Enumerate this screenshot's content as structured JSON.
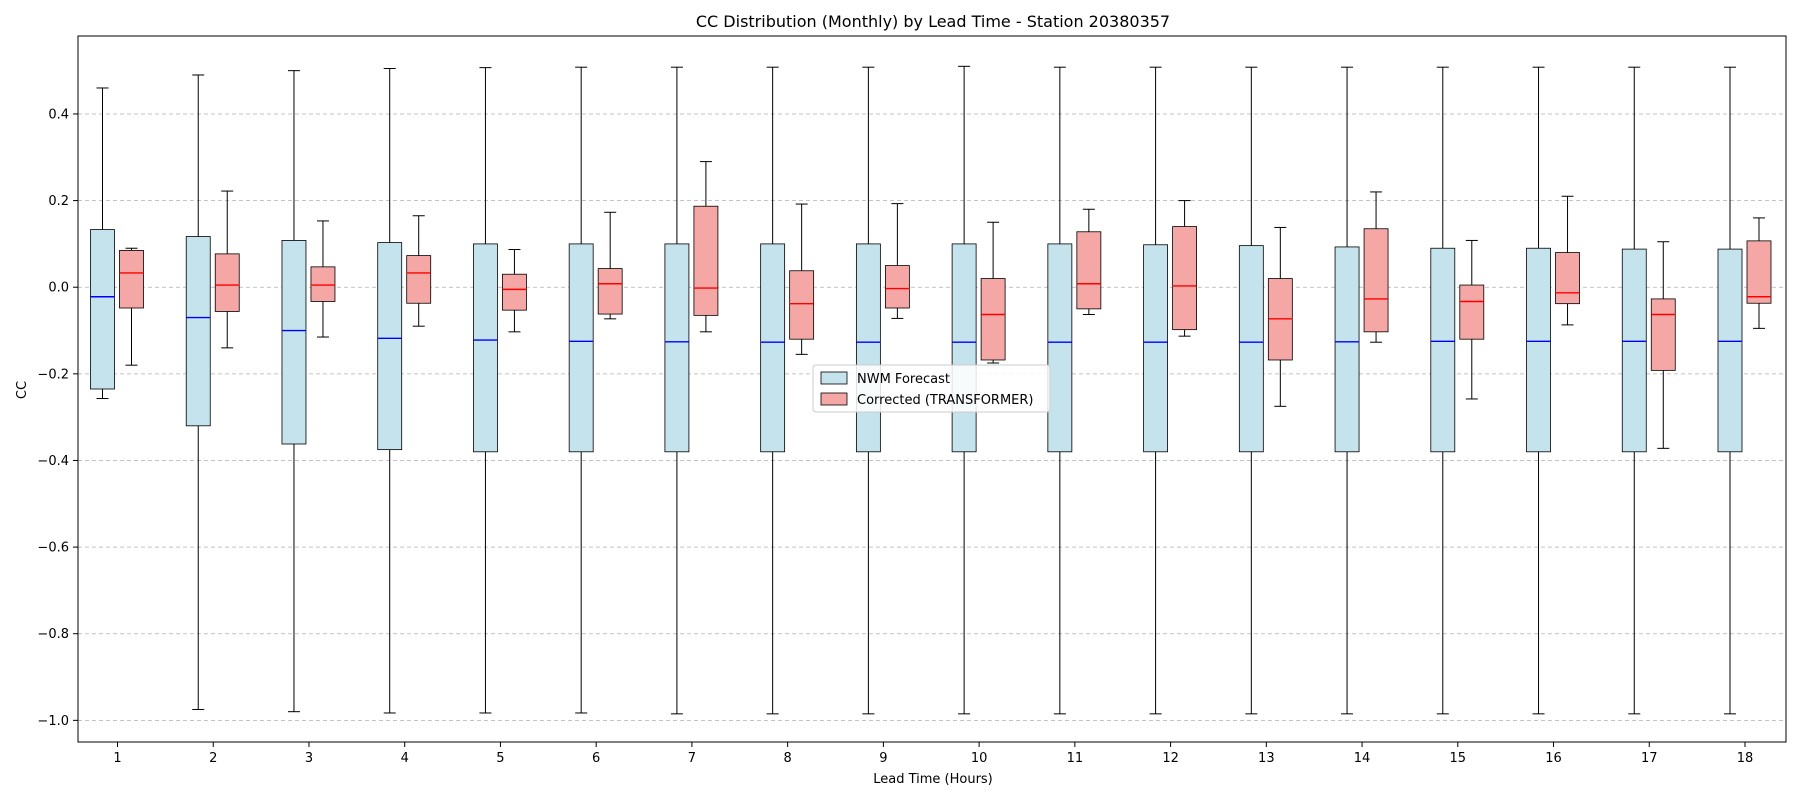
{
  "chart_data": {
    "type": "boxplot",
    "title": "CC Distribution (Monthly) by Lead Time - Station 20380357",
    "xlabel": "Lead Time (Hours)",
    "ylabel": "CC",
    "ylim": [
      -1.05,
      0.58
    ],
    "yticks": [
      -1.0,
      -0.8,
      -0.6,
      -0.4,
      -0.2,
      0.0,
      0.2,
      0.4
    ],
    "ytick_labels": [
      "−1.0",
      "−0.8",
      "−0.6",
      "−0.4",
      "−0.2",
      "0.0",
      "0.2",
      "0.4"
    ],
    "grid": "y-dashed",
    "legend_position": "center",
    "categories": [
      "1",
      "2",
      "3",
      "4",
      "5",
      "6",
      "7",
      "8",
      "9",
      "10",
      "11",
      "12",
      "13",
      "14",
      "15",
      "16",
      "17",
      "18"
    ],
    "series": [
      {
        "name": "NWM Forecast",
        "fill_color": "#c5e3ec",
        "median_color": "#0000ff",
        "whisker_low": [
          -0.257,
          -0.975,
          -0.98,
          -0.983,
          -0.983,
          -0.983,
          -0.985,
          -0.985,
          -0.985,
          -0.985,
          -0.985,
          -0.985,
          -0.985,
          -0.985,
          -0.985,
          -0.985,
          -0.985,
          -0.985
        ],
        "q1": [
          -0.235,
          -0.32,
          -0.362,
          -0.375,
          -0.38,
          -0.38,
          -0.38,
          -0.38,
          -0.38,
          -0.38,
          -0.38,
          -0.38,
          -0.38,
          -0.38,
          -0.38,
          -0.38,
          -0.38,
          -0.38
        ],
        "median": [
          -0.022,
          -0.07,
          -0.1,
          -0.118,
          -0.122,
          -0.125,
          -0.126,
          -0.127,
          -0.127,
          -0.127,
          -0.127,
          -0.127,
          -0.127,
          -0.126,
          -0.125,
          -0.125,
          -0.125,
          -0.125
        ],
        "q3": [
          0.133,
          0.117,
          0.108,
          0.103,
          0.1,
          0.1,
          0.1,
          0.1,
          0.1,
          0.1,
          0.1,
          0.098,
          0.096,
          0.093,
          0.09,
          0.09,
          0.088,
          0.088
        ],
        "whisker_high": [
          0.46,
          0.49,
          0.5,
          0.505,
          0.507,
          0.508,
          0.508,
          0.508,
          0.508,
          0.51,
          0.508,
          0.508,
          0.508,
          0.508,
          0.508,
          0.508,
          0.508,
          0.508
        ]
      },
      {
        "name": "Corrected (TRANSFORMER)",
        "fill_color": "#f4a7a5",
        "median_color": "#ff0000",
        "whisker_low": [
          -0.18,
          -0.14,
          -0.115,
          -0.09,
          -0.103,
          -0.073,
          -0.103,
          -0.155,
          -0.072,
          -0.175,
          -0.063,
          -0.113,
          -0.275,
          -0.127,
          -0.258,
          -0.087,
          -0.372,
          -0.095
        ],
        "q1": [
          -0.048,
          -0.056,
          -0.033,
          -0.037,
          -0.053,
          -0.062,
          -0.065,
          -0.12,
          -0.048,
          -0.168,
          -0.05,
          -0.098,
          -0.168,
          -0.103,
          -0.12,
          -0.038,
          -0.192,
          -0.037
        ],
        "median": [
          0.033,
          0.005,
          0.005,
          0.033,
          -0.005,
          0.008,
          -0.002,
          -0.038,
          -0.003,
          -0.063,
          0.008,
          0.003,
          -0.073,
          -0.027,
          -0.033,
          -0.013,
          -0.063,
          -0.022
        ],
        "q3": [
          0.085,
          0.077,
          0.047,
          0.073,
          0.03,
          0.043,
          0.187,
          0.038,
          0.05,
          0.02,
          0.128,
          0.14,
          0.02,
          0.135,
          0.005,
          0.08,
          -0.027,
          0.107
        ],
        "whisker_high": [
          0.09,
          0.222,
          0.153,
          0.165,
          0.087,
          0.173,
          0.29,
          0.192,
          0.193,
          0.15,
          0.18,
          0.2,
          0.138,
          0.22,
          0.108,
          0.21,
          0.105,
          0.16
        ]
      }
    ]
  }
}
